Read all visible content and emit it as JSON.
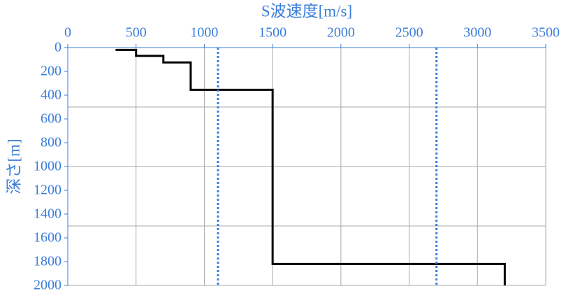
{
  "chart_data": {
    "type": "line",
    "x_label": "S波速度[m/s]",
    "y_label": "深さ[m]",
    "xlim": [
      0,
      3500
    ],
    "xticks": [
      0,
      500,
      1000,
      1500,
      2000,
      2500,
      3000,
      3500
    ],
    "ylim": [
      0,
      2000
    ],
    "yticks": [
      0,
      200,
      400,
      600,
      800,
      1000,
      1200,
      1400,
      1600,
      1800,
      2000
    ],
    "ygrid": [
      500,
      1000,
      1500,
      2000
    ],
    "y_inverted": true,
    "x_axis_position": "top",
    "grid": true,
    "series": [
      {
        "color": "#000000",
        "style": "solid",
        "x": [
          350,
          500,
          500,
          700,
          700,
          900,
          900,
          1500,
          1500,
          3200,
          3200
        ],
        "values": [
          20,
          20,
          70,
          70,
          125,
          125,
          355,
          355,
          1820,
          1820,
          2000
        ]
      },
      {
        "color": "#3b7dd8",
        "style": "dotted",
        "x": [
          1100,
          1100
        ],
        "values": [
          0,
          2000
        ]
      },
      {
        "color": "#3b7dd8",
        "style": "dotted",
        "x": [
          2700,
          2700
        ],
        "values": [
          0,
          2000
        ]
      }
    ]
  }
}
